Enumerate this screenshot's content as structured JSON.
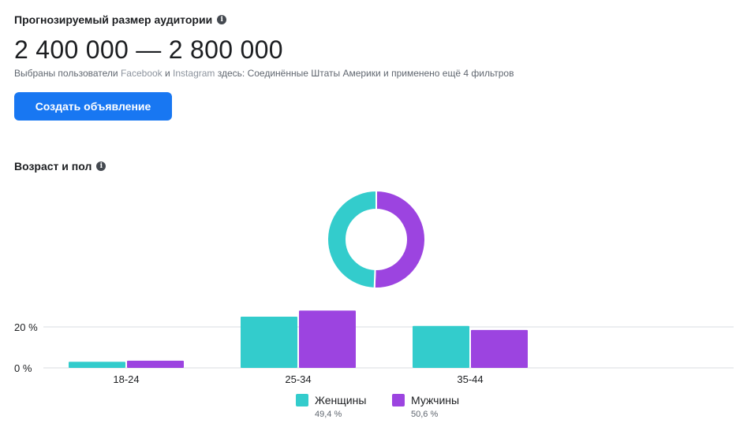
{
  "audience": {
    "title": "Прогнозируемый размер аудитории",
    "size": "2 400 000 — 2 800 000",
    "description": {
      "prefix": "Выбраны пользователи ",
      "platform1": "Facebook",
      "and": " и ",
      "platform2": "Instagram",
      "suffix": " здесь: Соединённые Штаты Америки и применено ещё 4 фильтров"
    },
    "create_ad_label": "Создать объявление"
  },
  "age_gender": {
    "title": "Возраст и пол"
  },
  "icons": {
    "info": "info-icon"
  },
  "colors": {
    "women": "#33cccc",
    "men": "#9c44e0",
    "button": "#1877f2",
    "gridline": "#dadde1"
  },
  "chart_data": {
    "type": "bar",
    "categories": [
      "18-24",
      "25-34",
      "35-44"
    ],
    "series": [
      {
        "name": "Женщины",
        "percent_label": "49,4 %",
        "share": 49.4,
        "values": [
          3,
          25,
          20.5
        ]
      },
      {
        "name": "Мужчины",
        "percent_label": "50,6 %",
        "share": 50.6,
        "values": [
          3.5,
          28,
          18.5
        ]
      }
    ],
    "y_ticks": [
      {
        "value": 20,
        "label": "20 %"
      },
      {
        "value": 0,
        "label": "0 %"
      }
    ],
    "ylim": [
      0,
      30
    ],
    "donut": {
      "type": "pie",
      "values": [
        49.4,
        50.6
      ]
    }
  }
}
